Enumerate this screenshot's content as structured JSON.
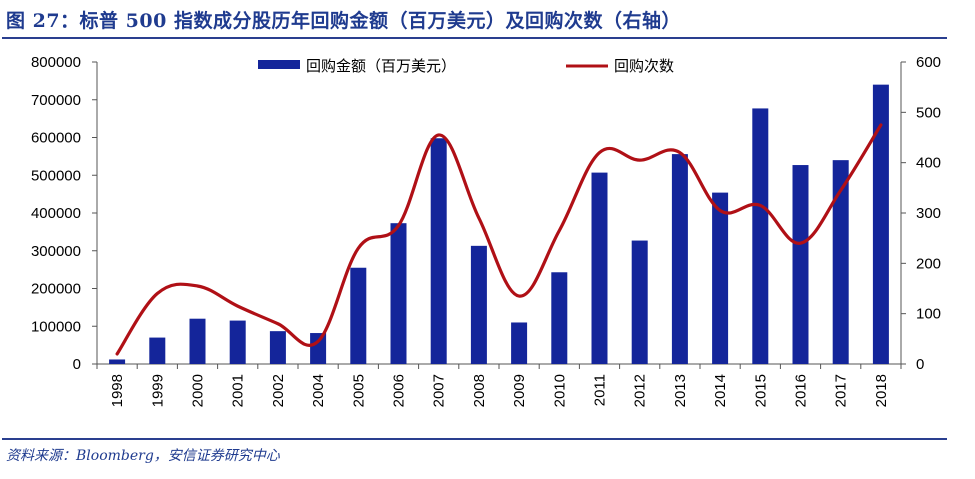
{
  "header": {
    "title": "图 27：标普 500 指数成分股历年回购金额（百万美元）及回购次数（右轴）"
  },
  "footer": {
    "source": "资料来源：Bloomberg，安信证券研究中心"
  },
  "colors": {
    "bar": "#14259a",
    "line": "#b01016",
    "rule": "#2a3f8f",
    "title": "#1f3b8f"
  },
  "chart_data": {
    "type": "bar+line",
    "categories": [
      "1998",
      "1999",
      "2000",
      "2001",
      "2002",
      "2004",
      "2005",
      "2006",
      "2007",
      "2008",
      "2009",
      "2010",
      "2011",
      "2012",
      "2013",
      "2014",
      "2015",
      "2016",
      "2017",
      "2018"
    ],
    "series": [
      {
        "name": "回购金额（百万美元）",
        "type": "bar",
        "axis": "left",
        "values": [
          12000,
          70000,
          120000,
          115000,
          87000,
          82000,
          255000,
          373000,
          598000,
          313000,
          110000,
          243000,
          507000,
          327000,
          556000,
          454000,
          677000,
          527000,
          540000,
          740000
        ]
      },
      {
        "name": "回购次数",
        "type": "line",
        "axis": "right",
        "values": [
          20,
          140,
          155,
          115,
          80,
          45,
          230,
          275,
          455,
          290,
          135,
          265,
          420,
          405,
          420,
          305,
          315,
          240,
          345,
          475
        ]
      }
    ],
    "y_left": {
      "min": 0,
      "max": 800000,
      "ticks": [
        "0",
        "100000",
        "200000",
        "300000",
        "400000",
        "500000",
        "600000",
        "700000",
        "800000"
      ]
    },
    "y_right": {
      "min": 0,
      "max": 600,
      "ticks": [
        "0",
        "100",
        "200",
        "300",
        "400",
        "500",
        "600"
      ]
    },
    "legend_position": "top",
    "grid": false
  }
}
